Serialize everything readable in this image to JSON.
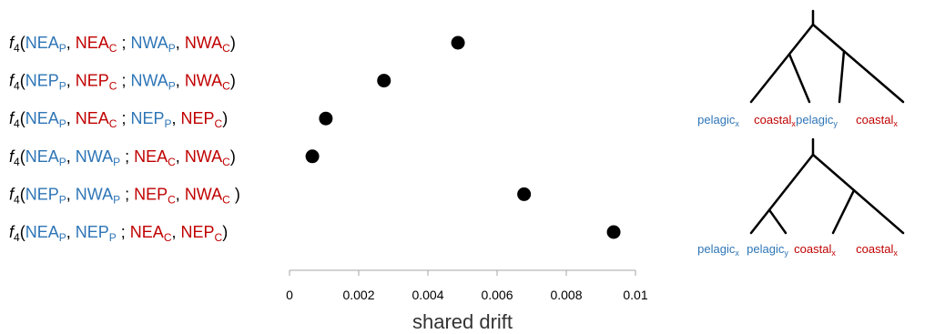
{
  "colors": {
    "pelagic": "#2E75B6",
    "coastal": "#C00000",
    "ink": "#000000",
    "axis": "#a6a6a6"
  },
  "chart_data": {
    "type": "scatter",
    "xlabel": "shared drift",
    "xlim": [
      0,
      0.01
    ],
    "xticks": [
      0,
      0.002,
      0.004,
      0.006,
      0.008,
      0.01
    ],
    "xtick_labels": [
      "0",
      "0.002",
      "0.004",
      "0.006",
      "0.008",
      "0.01"
    ],
    "points": [
      {
        "label": "f4(NEAP, NEAC ; NWAP, NWAC)",
        "parts": [
          {
            "t": "f",
            "c": "ink",
            "i": true
          },
          {
            "t": "4",
            "c": "ink",
            "sub": true
          },
          {
            "t": "(",
            "c": "ink"
          },
          {
            "t": "NEA",
            "c": "pelagic"
          },
          {
            "t": "P",
            "c": "pelagic",
            "sub": true
          },
          {
            "t": ", ",
            "c": "ink"
          },
          {
            "t": "NEA",
            "c": "coastal"
          },
          {
            "t": "C",
            "c": "coastal",
            "sub": true
          },
          {
            "t": " ; ",
            "c": "ink"
          },
          {
            "t": "NWA",
            "c": "pelagic"
          },
          {
            "t": "P",
            "c": "pelagic",
            "sub": true
          },
          {
            "t": ", ",
            "c": "ink"
          },
          {
            "t": "NWA",
            "c": "coastal"
          },
          {
            "t": "C",
            "c": "coastal",
            "sub": true
          },
          {
            "t": ")",
            "c": "ink"
          }
        ],
        "value": 0.00487
      },
      {
        "label": "f4(NEPP, NEPC ; NWAP, NWAC)",
        "parts": [
          {
            "t": "f",
            "c": "ink",
            "i": true
          },
          {
            "t": "4",
            "c": "ink",
            "sub": true
          },
          {
            "t": "(",
            "c": "ink"
          },
          {
            "t": "NEP",
            "c": "pelagic"
          },
          {
            "t": "P",
            "c": "pelagic",
            "sub": true
          },
          {
            "t": ", ",
            "c": "ink"
          },
          {
            "t": "NEP",
            "c": "coastal"
          },
          {
            "t": "C",
            "c": "coastal",
            "sub": true
          },
          {
            "t": " ; ",
            "c": "ink"
          },
          {
            "t": "NWA",
            "c": "pelagic"
          },
          {
            "t": "P",
            "c": "pelagic",
            "sub": true
          },
          {
            "t": ", ",
            "c": "ink"
          },
          {
            "t": "NWA",
            "c": "coastal"
          },
          {
            "t": "C",
            "c": "coastal",
            "sub": true
          },
          {
            "t": ")",
            "c": "ink"
          }
        ],
        "value": 0.00273
      },
      {
        "label": "f4(NEAP, NEAC ; NEPP, NEPC)",
        "parts": [
          {
            "t": "f",
            "c": "ink",
            "i": true
          },
          {
            "t": "4",
            "c": "ink",
            "sub": true
          },
          {
            "t": "(",
            "c": "ink"
          },
          {
            "t": "NEA",
            "c": "pelagic"
          },
          {
            "t": "P",
            "c": "pelagic",
            "sub": true
          },
          {
            "t": ", ",
            "c": "ink"
          },
          {
            "t": "NEA",
            "c": "coastal"
          },
          {
            "t": "C",
            "c": "coastal",
            "sub": true
          },
          {
            "t": " ; ",
            "c": "ink"
          },
          {
            "t": "NEP",
            "c": "pelagic"
          },
          {
            "t": "P",
            "c": "pelagic",
            "sub": true
          },
          {
            "t": ", ",
            "c": "ink"
          },
          {
            "t": "NEP",
            "c": "coastal"
          },
          {
            "t": "C",
            "c": "coastal",
            "sub": true
          },
          {
            "t": ")",
            "c": "ink"
          }
        ],
        "value": 0.00105
      },
      {
        "label": "f4(NEAP, NWAP ; NEAC, NWAC)",
        "parts": [
          {
            "t": "f",
            "c": "ink",
            "i": true
          },
          {
            "t": "4",
            "c": "ink",
            "sub": true
          },
          {
            "t": "(",
            "c": "ink"
          },
          {
            "t": "NEA",
            "c": "pelagic"
          },
          {
            "t": "P",
            "c": "pelagic",
            "sub": true
          },
          {
            "t": ", ",
            "c": "ink"
          },
          {
            "t": "NWA",
            "c": "pelagic"
          },
          {
            "t": "P",
            "c": "pelagic",
            "sub": true
          },
          {
            "t": " ; ",
            "c": "ink"
          },
          {
            "t": "NEA",
            "c": "coastal"
          },
          {
            "t": "C",
            "c": "coastal",
            "sub": true
          },
          {
            "t": ", ",
            "c": "ink"
          },
          {
            "t": "NWA",
            "c": "coastal"
          },
          {
            "t": "C",
            "c": "coastal",
            "sub": true
          },
          {
            "t": ")",
            "c": "ink"
          }
        ],
        "value": 0.00066
      },
      {
        "label": "f4(NEPP, NWAP ; NEPC, NWAC )",
        "parts": [
          {
            "t": "f",
            "c": "ink",
            "i": true
          },
          {
            "t": "4",
            "c": "ink",
            "sub": true
          },
          {
            "t": "(",
            "c": "ink"
          },
          {
            "t": "NEP",
            "c": "pelagic"
          },
          {
            "t": "P",
            "c": "pelagic",
            "sub": true
          },
          {
            "t": ", ",
            "c": "ink"
          },
          {
            "t": "NWA",
            "c": "pelagic"
          },
          {
            "t": "P",
            "c": "pelagic",
            "sub": true
          },
          {
            "t": " ; ",
            "c": "ink"
          },
          {
            "t": "NEP",
            "c": "coastal"
          },
          {
            "t": "C",
            "c": "coastal",
            "sub": true
          },
          {
            "t": ", ",
            "c": "ink"
          },
          {
            "t": "NWA",
            "c": "coastal"
          },
          {
            "t": "C",
            "c": "coastal",
            "sub": true
          },
          {
            "t": " )",
            "c": "ink"
          }
        ],
        "value": 0.00678
      },
      {
        "label": "f4(NEAP, NEPP ; NEAC, NEPC)",
        "parts": [
          {
            "t": "f",
            "c": "ink",
            "i": true
          },
          {
            "t": "4",
            "c": "ink",
            "sub": true
          },
          {
            "t": "(",
            "c": "ink"
          },
          {
            "t": "NEA",
            "c": "pelagic"
          },
          {
            "t": "P",
            "c": "pelagic",
            "sub": true
          },
          {
            "t": ", ",
            "c": "ink"
          },
          {
            "t": "NEP",
            "c": "pelagic"
          },
          {
            "t": "P",
            "c": "pelagic",
            "sub": true
          },
          {
            "t": " ; ",
            "c": "ink"
          },
          {
            "t": "NEA",
            "c": "coastal"
          },
          {
            "t": "C",
            "c": "coastal",
            "sub": true
          },
          {
            "t": ", ",
            "c": "ink"
          },
          {
            "t": "NEP",
            "c": "coastal"
          },
          {
            "t": "C",
            "c": "coastal",
            "sub": true
          },
          {
            "t": ")",
            "c": "ink"
          }
        ],
        "value": 0.00937
      }
    ]
  },
  "trees": [
    {
      "tips": [
        {
          "name": "pelagic",
          "sub": "x",
          "c": "pelagic"
        },
        {
          "name": "coastal",
          "sub": "x",
          "c": "coastal"
        },
        {
          "name": "pelagic",
          "sub": "y",
          "c": "pelagic"
        },
        {
          "name": "coastal",
          "sub": "x",
          "c": "coastal"
        }
      ]
    },
    {
      "tips": [
        {
          "name": "pelagic",
          "sub": "x",
          "c": "pelagic"
        },
        {
          "name": "pelagic",
          "sub": "y",
          "c": "pelagic"
        },
        {
          "name": "coastal",
          "sub": "x",
          "c": "coastal"
        },
        {
          "name": "coastal",
          "sub": "x",
          "c": "coastal"
        }
      ]
    }
  ]
}
